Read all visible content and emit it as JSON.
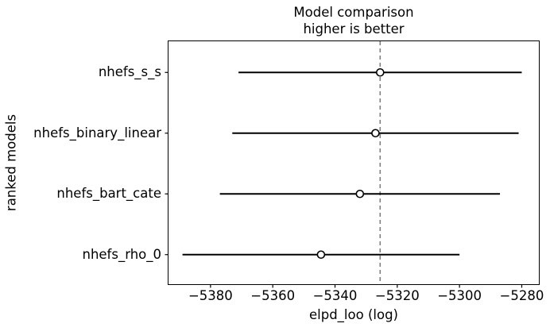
{
  "chart": {
    "title_line1": "Model comparison",
    "title_line2": "higher is better",
    "xlabel": "elpd_loo (log)",
    "ylabel": "ranked models"
  },
  "chart_data": {
    "type": "scatter",
    "subtype": "horizontal-errorbar-forest",
    "title": "Model comparison\nhigher is better",
    "xlabel": "elpd_loo (log)",
    "ylabel": "ranked models",
    "xlim": [
      -5393.5,
      -5274.5
    ],
    "x_ticks": [
      -5380,
      -5360,
      -5340,
      -5320,
      -5300,
      -5280
    ],
    "grid": false,
    "legend": false,
    "reference_line": {
      "x": -5325.5,
      "orientation": "vertical",
      "style": "dashed",
      "color": "#808080"
    },
    "categories": [
      "nhefs_s_s",
      "nhefs_binary_linear",
      "nhefs_bart_cate",
      "nhefs_rho_0"
    ],
    "models": [
      {
        "name": "nhefs_s_s",
        "elpd_loo": -5325.5,
        "se": 45.5,
        "lower": -5371,
        "upper": -5280
      },
      {
        "name": "nhefs_binary_linear",
        "elpd_loo": -5327.0,
        "se": 46.0,
        "lower": -5373,
        "upper": -5281
      },
      {
        "name": "nhefs_bart_cate",
        "elpd_loo": -5332.0,
        "se": 45.0,
        "lower": -5377,
        "upper": -5287
      },
      {
        "name": "nhefs_rho_0",
        "elpd_loo": -5344.5,
        "se": 44.5,
        "lower": -5389,
        "upper": -5300
      }
    ],
    "colors": {
      "errorbar": "#000000",
      "marker_edge": "#000000",
      "marker_face": "#ffffff",
      "frame": "#000000",
      "reference": "#808080",
      "text": "#000000",
      "background": "#ffffff"
    }
  }
}
